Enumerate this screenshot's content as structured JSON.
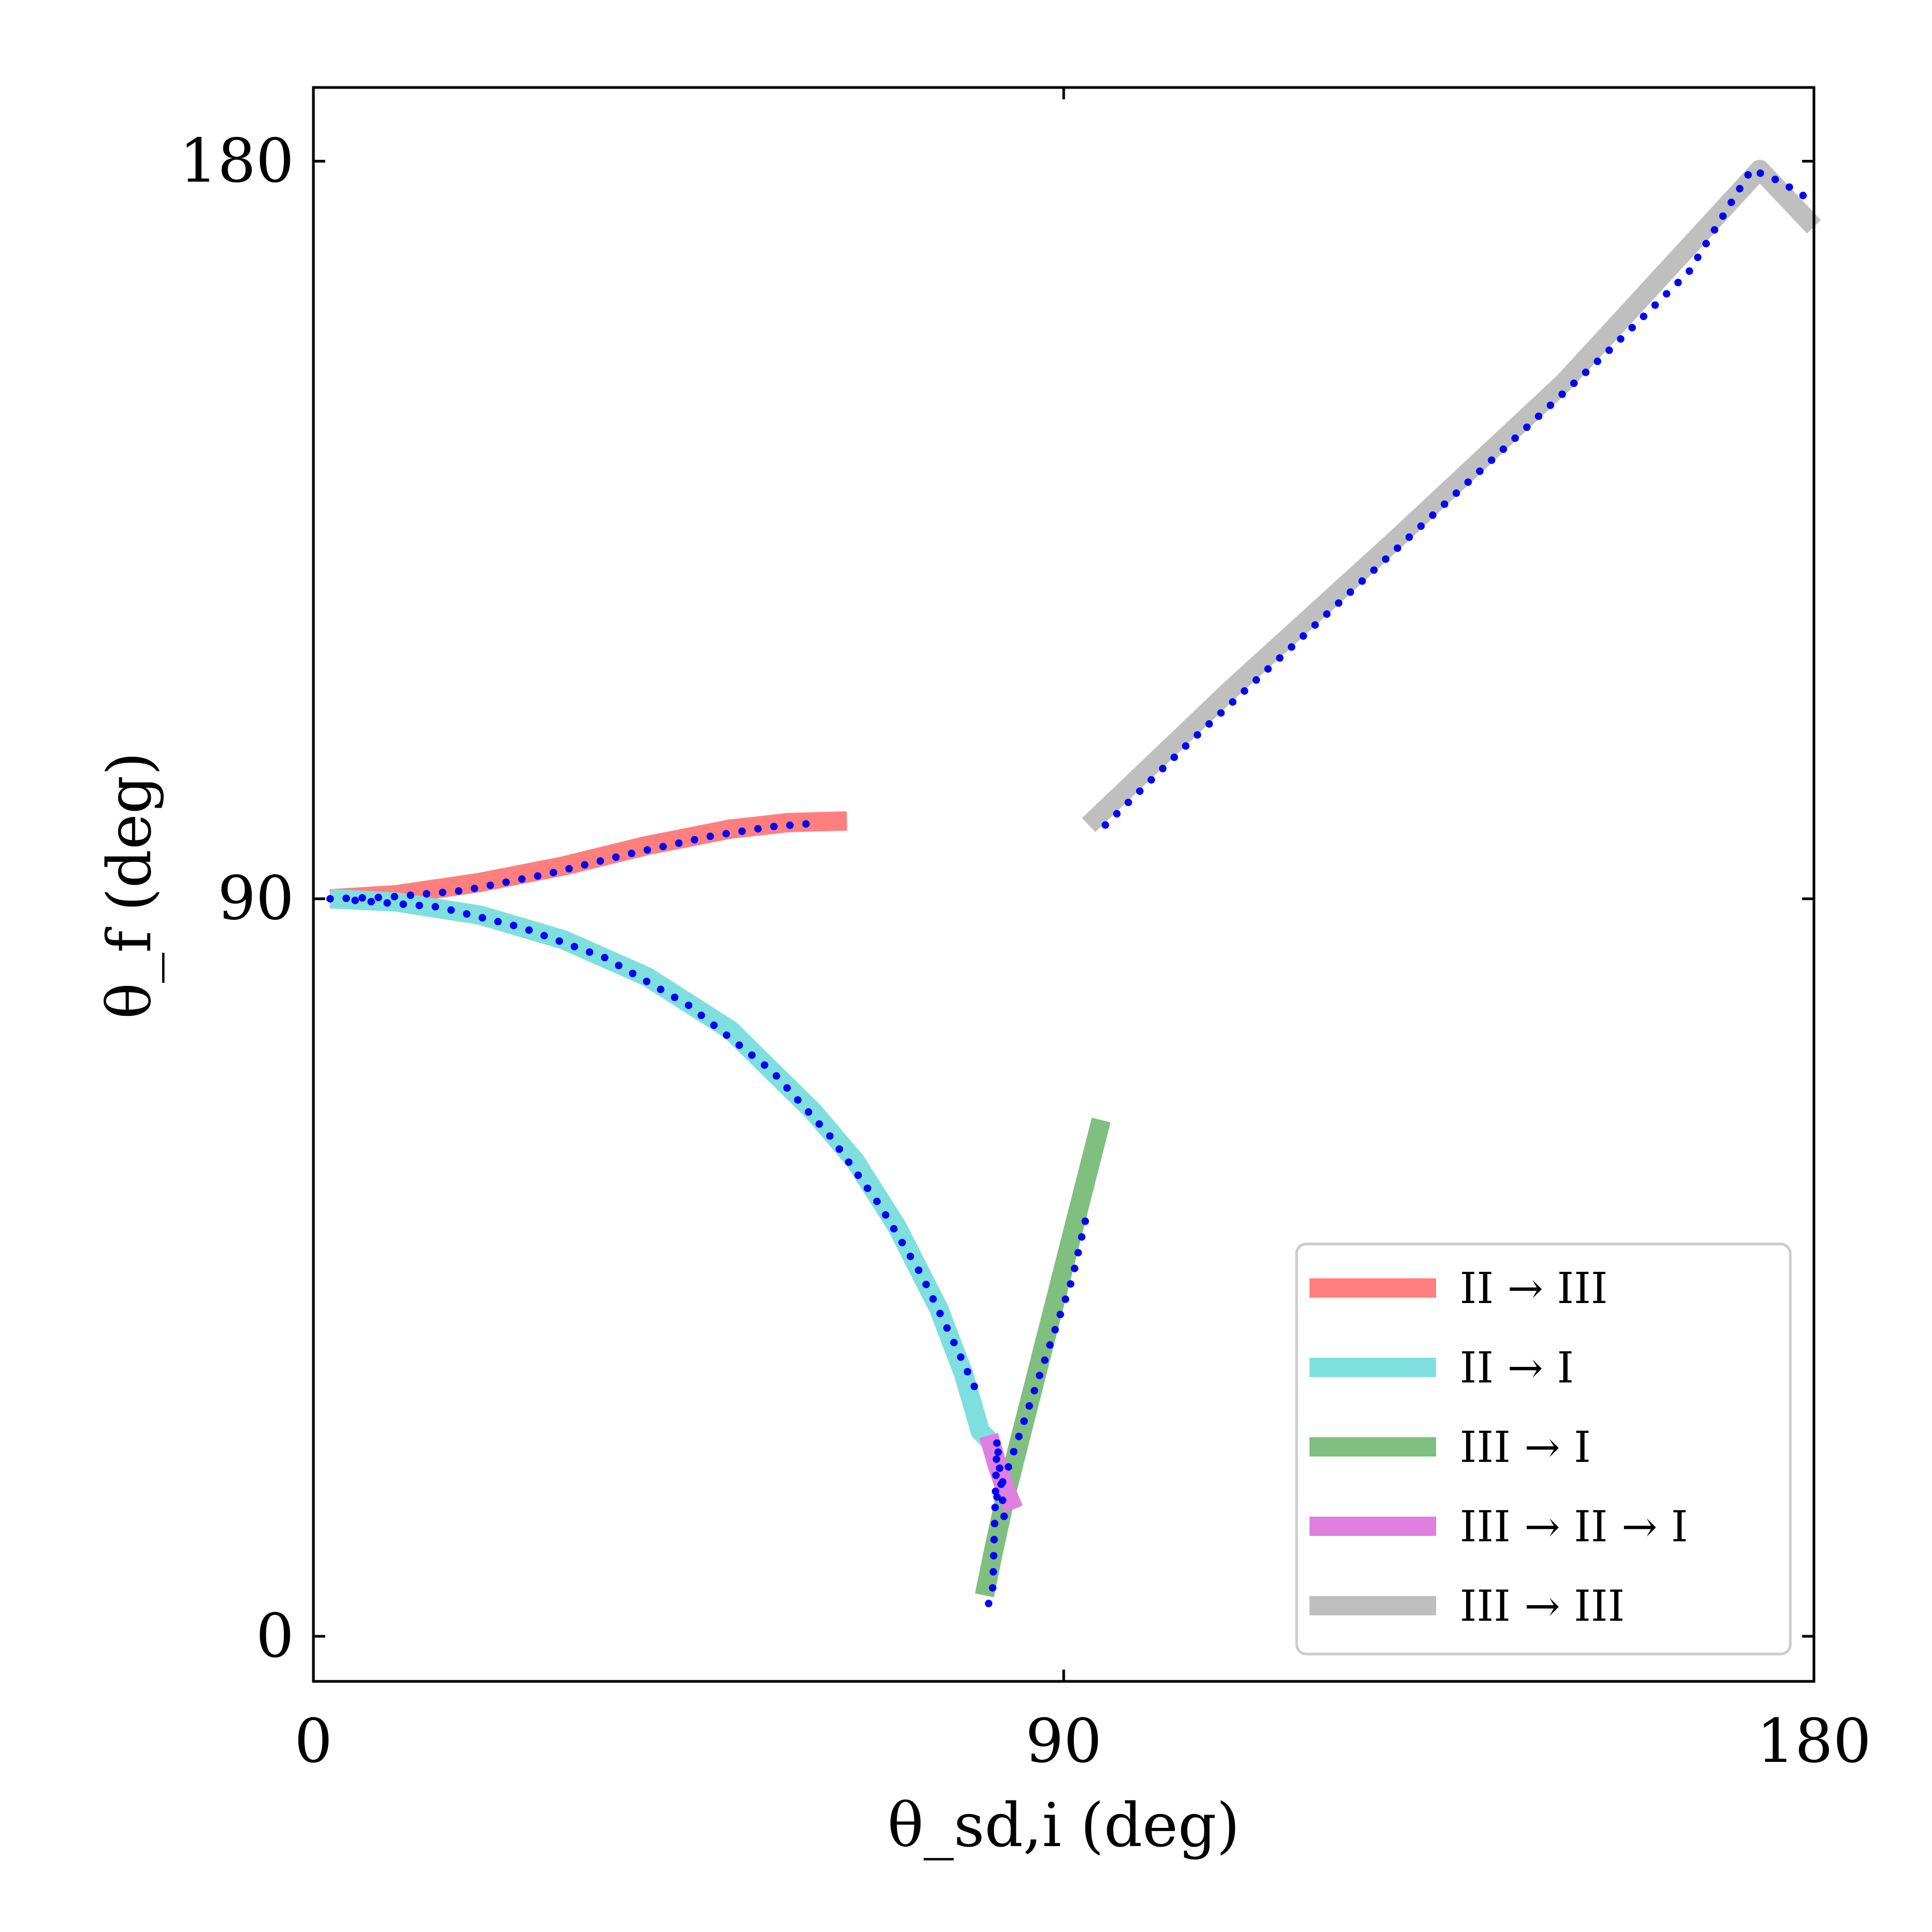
{
  "chart_data": {
    "type": "line",
    "title": "",
    "xlabel": "θ_sd,i (deg)",
    "ylabel": "θ_f (deg)",
    "xlim": [
      0,
      180
    ],
    "ylim": [
      -5.5,
      189
    ],
    "xticks": [
      0,
      90,
      180
    ],
    "yticks": [
      0,
      90,
      180
    ],
    "grid": false,
    "legend_position": "lower-right",
    "series": [
      {
        "name": "II → III",
        "color": "#ff7f7f",
        "x": [
          2,
          10,
          20,
          30,
          40,
          50,
          57,
          64
        ],
        "y": [
          90,
          90.5,
          92,
          94,
          96.5,
          98.5,
          99.3,
          99.5
        ]
      },
      {
        "name": "II → I",
        "color": "#7fdfdf",
        "x": [
          2,
          10,
          20,
          30,
          40,
          50,
          60,
          65,
          70,
          75,
          78,
          80,
          81
        ],
        "y": [
          90,
          89.6,
          88,
          85,
          80.5,
          74,
          64,
          58,
          50,
          40,
          32,
          25,
          24
        ]
      },
      {
        "name": "III → I",
        "color": "#7fbf7f",
        "x": [
          80.5,
          81.5,
          83,
          85,
          87,
          89,
          91,
          93,
          94.5
        ],
        "y": [
          5,
          10,
          17,
          25,
          33,
          41,
          49,
          57,
          63
        ]
      },
      {
        "name": "III → II → I",
        "color": "#df7fdf",
        "x": [
          81,
          82,
          83,
          84
        ],
        "y": [
          24.5,
          21,
          18,
          15.5
        ]
      },
      {
        "name": "III → III",
        "color": "#bfbfbf",
        "x": [
          93,
          110,
          130,
          150,
          173.5,
          180
        ],
        "y": [
          99,
          115.5,
          134,
          153,
          179,
          172
        ]
      }
    ],
    "markers": {
      "color": "#0000ff",
      "segments": [
        {
          "x": [
            2,
            9,
            18,
            28,
            38,
            48,
            55,
            60
          ],
          "y": [
            90,
            90.2,
            91,
            93,
            95.5,
            97.7,
            98.8,
            99.2
          ]
        },
        {
          "x": [
            5,
            15,
            25,
            35,
            45,
            55,
            62,
            68,
            73,
            77,
            79.5
          ],
          "y": [
            89.8,
            89,
            86.5,
            82.8,
            77,
            69,
            61,
            52.5,
            44,
            35.5,
            30
          ]
        },
        {
          "x": [
            82,
            83.5,
            85,
            87,
            89,
            91,
            93
          ],
          "y": [
            17,
            21,
            25.5,
            31.5,
            37.5,
            43.5,
            52.5
          ]
        },
        {
          "x": [
            81,
            81.5,
            82,
            83
          ],
          "y": [
            4,
            6,
            24,
            13
          ]
        },
        {
          "x": [
            95,
            105,
            115,
            125,
            135,
            145,
            155,
            165,
            172.5,
            176,
            180
          ],
          "y": [
            99,
            109,
            118.5,
            128,
            137.5,
            147,
            156.5,
            166.5,
            179,
            177.5,
            175
          ]
        }
      ]
    }
  }
}
